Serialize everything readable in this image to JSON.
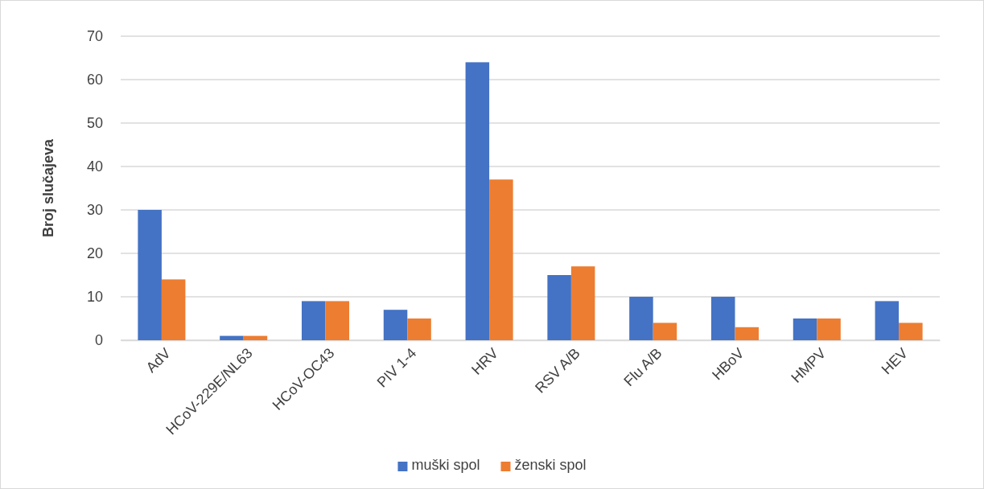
{
  "chart_data": {
    "type": "bar",
    "ylabel": "Broj slučajeva",
    "categories": [
      "AdV",
      "HCoV-229E/NL63",
      "HCoV-OC43",
      "PIV 1-4",
      "HRV",
      "RSV A/B",
      "Flu A/B",
      "HBoV",
      "HMPV",
      "HEV"
    ],
    "series": [
      {
        "name": "muški spol",
        "color": "#4472c4",
        "values": [
          30,
          1,
          9,
          7,
          64,
          15,
          10,
          10,
          5,
          9
        ]
      },
      {
        "name": "ženski spol",
        "color": "#ed7d31",
        "values": [
          14,
          1,
          9,
          5,
          37,
          17,
          4,
          3,
          5,
          4
        ]
      }
    ],
    "ylim": [
      0,
      70
    ],
    "yticks": [
      0,
      10,
      20,
      30,
      40,
      50,
      60,
      70
    ],
    "grid": "y",
    "legend": "bottom"
  }
}
